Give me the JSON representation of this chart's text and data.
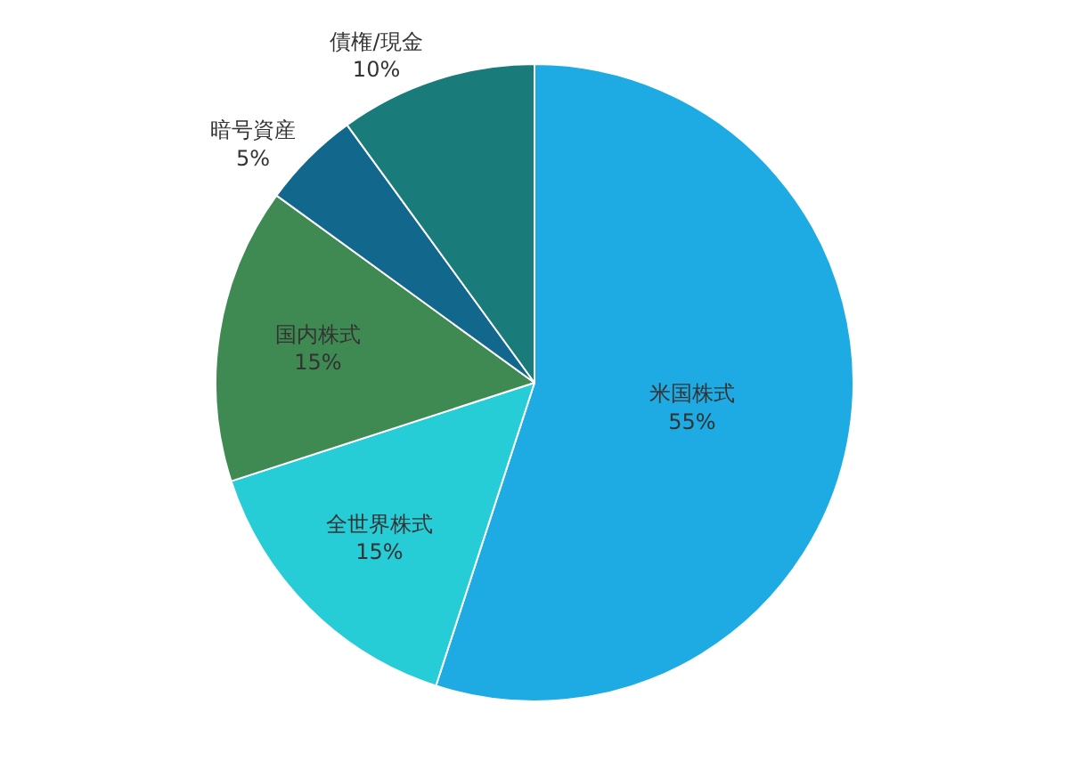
{
  "chart_data": {
    "type": "pie",
    "categories": [
      "米国株式",
      "全世界株式",
      "国内株式",
      "暗号資産",
      "債権/現金"
    ],
    "values": [
      55,
      15,
      15,
      5,
      10
    ],
    "value_labels": [
      "55%",
      "15%",
      "15%",
      "5%",
      "10%"
    ],
    "colors": [
      "#1eaae2",
      "#27cdd6",
      "#3f8a52",
      "#12688c",
      "#1a7b7b"
    ],
    "legend": false
  }
}
